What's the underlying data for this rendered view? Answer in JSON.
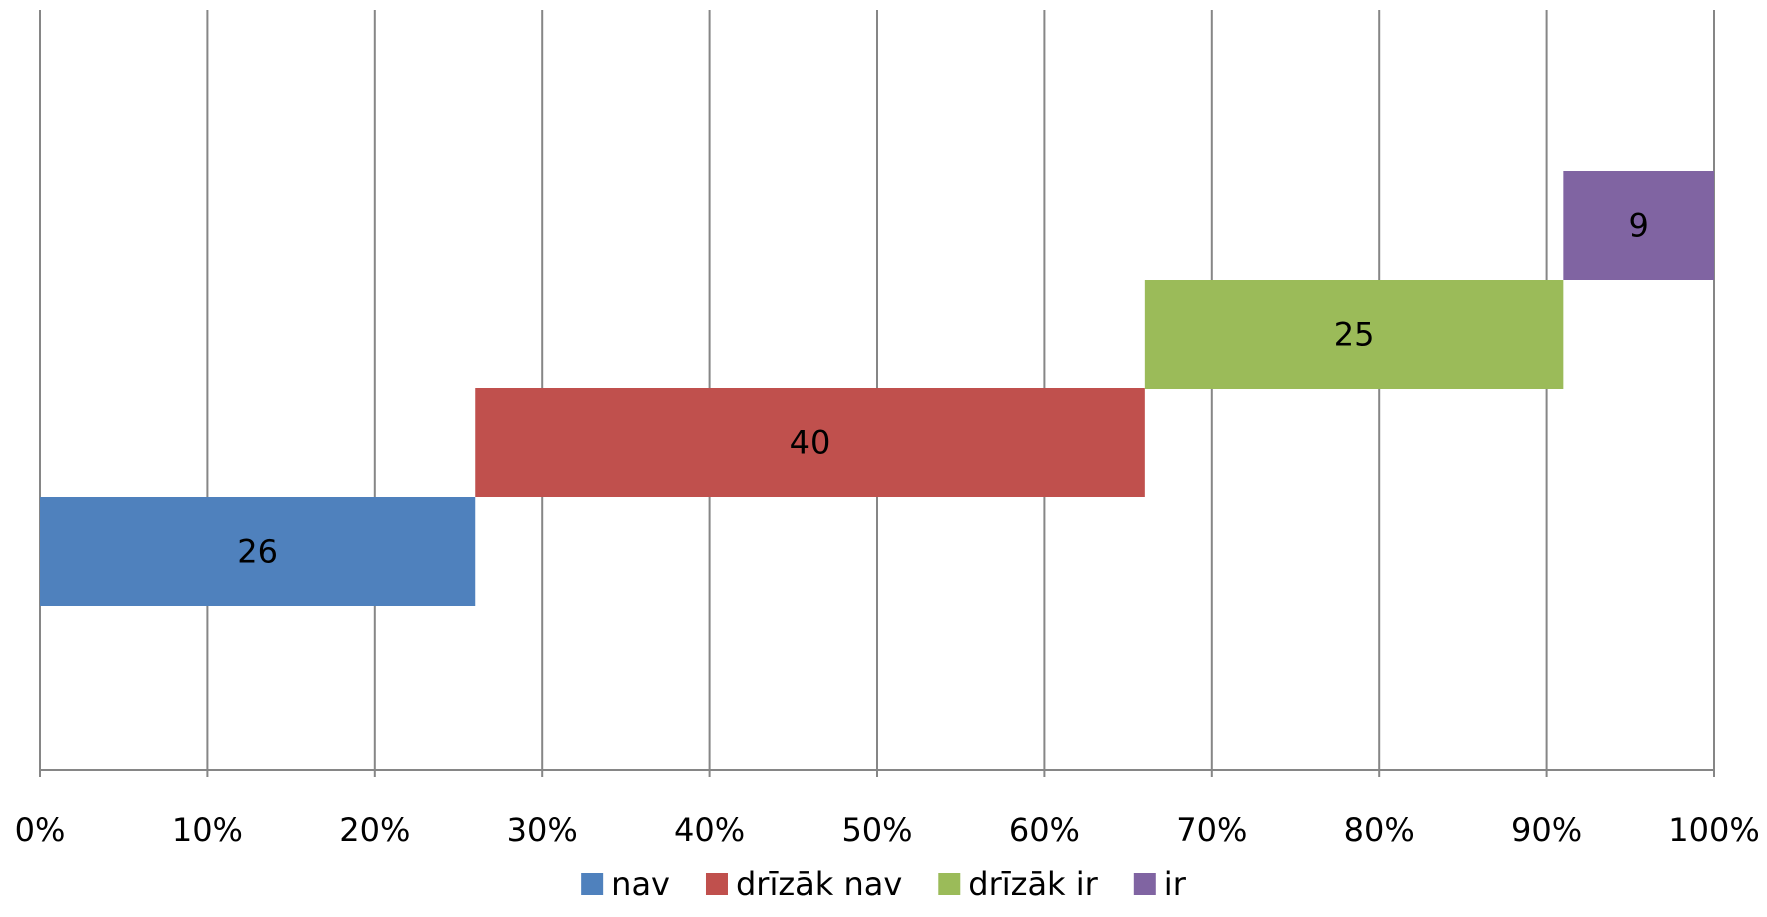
{
  "chart_data": {
    "type": "bar",
    "orientation": "horizontal",
    "stacked": true,
    "categories": [
      ""
    ],
    "series": [
      {
        "name": "nav",
        "values": [
          26
        ],
        "color": "#4F81BD",
        "label": "26"
      },
      {
        "name": "drīzāk nav",
        "values": [
          40
        ],
        "color": "#C0504D",
        "label": "40"
      },
      {
        "name": "drīzāk ir",
        "values": [
          25
        ],
        "color": "#9BBB59",
        "label": "25"
      },
      {
        "name": "ir",
        "values": [
          9
        ],
        "color": "#8064A2",
        "label": "9"
      }
    ],
    "xlim": [
      0,
      100
    ],
    "x_ticks": [
      "0%",
      "10%",
      "20%",
      "30%",
      "40%",
      "50%",
      "60%",
      "70%",
      "80%",
      "90%",
      "100%"
    ],
    "grid": true,
    "grid_color": "#868686",
    "legend_position": "bottom",
    "title": "",
    "xlabel": "",
    "ylabel": ""
  }
}
